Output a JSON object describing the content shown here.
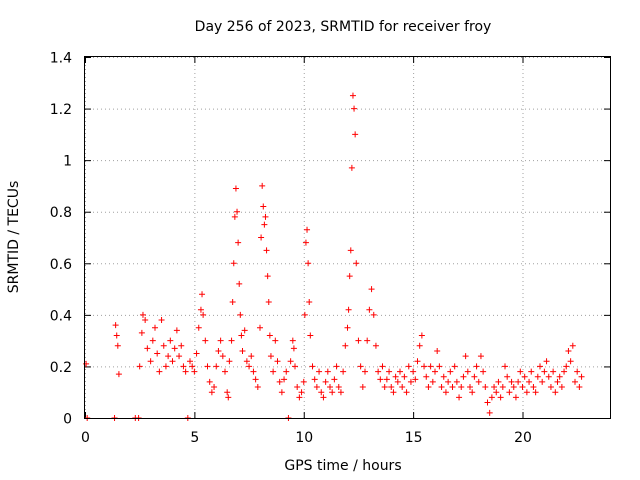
{
  "chart_data": {
    "type": "scatter",
    "title": "Day 256 of 2023, SRMTID for receiver froy",
    "xlabel": "GPS time / hours",
    "ylabel": "SRMTID / TECUs",
    "xlim": [
      0,
      24
    ],
    "ylim": [
      0,
      1.4
    ],
    "xticks": [
      0,
      5,
      10,
      15,
      20
    ],
    "xtick_labels": [
      "0",
      "5",
      "10",
      "15",
      "20"
    ],
    "yticks": [
      0,
      0.2,
      0.4,
      0.6,
      0.8,
      1.0,
      1.2,
      1.4
    ],
    "ytick_labels": [
      "0",
      "0.2",
      "0.4",
      "0.6",
      "0.8",
      "1",
      "1.2",
      "1.4"
    ],
    "grid": true,
    "marker": "+",
    "color": "#ff0000",
    "series": [
      {
        "name": "SRMTID",
        "points": [
          [
            0.05,
            0.21
          ],
          [
            0.1,
            0.0
          ],
          [
            1.35,
            0.0
          ],
          [
            1.4,
            0.36
          ],
          [
            1.45,
            0.32
          ],
          [
            1.5,
            0.28
          ],
          [
            1.55,
            0.17
          ],
          [
            2.3,
            0.0
          ],
          [
            2.45,
            0.0
          ],
          [
            2.5,
            0.2
          ],
          [
            2.6,
            0.33
          ],
          [
            2.65,
            0.4
          ],
          [
            2.75,
            0.38
          ],
          [
            2.85,
            0.27
          ],
          [
            3.0,
            0.22
          ],
          [
            3.1,
            0.3
          ],
          [
            3.2,
            0.35
          ],
          [
            3.3,
            0.25
          ],
          [
            3.4,
            0.18
          ],
          [
            3.5,
            0.38
          ],
          [
            3.6,
            0.28
          ],
          [
            3.7,
            0.2
          ],
          [
            3.8,
            0.24
          ],
          [
            3.9,
            0.3
          ],
          [
            4.0,
            0.22
          ],
          [
            4.1,
            0.27
          ],
          [
            4.2,
            0.34
          ],
          [
            4.3,
            0.24
          ],
          [
            4.4,
            0.28
          ],
          [
            4.5,
            0.2
          ],
          [
            4.6,
            0.18
          ],
          [
            4.7,
            0.0
          ],
          [
            4.8,
            0.22
          ],
          [
            4.9,
            0.2
          ],
          [
            5.0,
            0.18
          ],
          [
            5.1,
            0.25
          ],
          [
            5.2,
            0.35
          ],
          [
            5.3,
            0.42
          ],
          [
            5.35,
            0.48
          ],
          [
            5.4,
            0.4
          ],
          [
            5.5,
            0.3
          ],
          [
            5.6,
            0.2
          ],
          [
            5.7,
            0.14
          ],
          [
            5.8,
            0.1
          ],
          [
            5.9,
            0.12
          ],
          [
            6.0,
            0.2
          ],
          [
            6.1,
            0.26
          ],
          [
            6.2,
            0.3
          ],
          [
            6.3,
            0.24
          ],
          [
            6.4,
            0.18
          ],
          [
            6.5,
            0.1
          ],
          [
            6.55,
            0.08
          ],
          [
            6.6,
            0.22
          ],
          [
            6.7,
            0.3
          ],
          [
            6.75,
            0.45
          ],
          [
            6.8,
            0.6
          ],
          [
            6.85,
            0.78
          ],
          [
            6.9,
            0.89
          ],
          [
            6.95,
            0.8
          ],
          [
            7.0,
            0.68
          ],
          [
            7.05,
            0.52
          ],
          [
            7.1,
            0.4
          ],
          [
            7.15,
            0.32
          ],
          [
            7.2,
            0.26
          ],
          [
            7.3,
            0.34
          ],
          [
            7.4,
            0.22
          ],
          [
            7.5,
            0.2
          ],
          [
            7.6,
            0.24
          ],
          [
            7.7,
            0.18
          ],
          [
            7.8,
            0.15
          ],
          [
            7.9,
            0.12
          ],
          [
            8.0,
            0.35
          ],
          [
            8.05,
            0.7
          ],
          [
            8.1,
            0.9
          ],
          [
            8.15,
            0.82
          ],
          [
            8.2,
            0.75
          ],
          [
            8.25,
            0.78
          ],
          [
            8.3,
            0.65
          ],
          [
            8.35,
            0.55
          ],
          [
            8.4,
            0.45
          ],
          [
            8.45,
            0.32
          ],
          [
            8.5,
            0.24
          ],
          [
            8.6,
            0.18
          ],
          [
            8.7,
            0.3
          ],
          [
            8.8,
            0.22
          ],
          [
            8.9,
            0.14
          ],
          [
            9.0,
            0.1
          ],
          [
            9.1,
            0.15
          ],
          [
            9.2,
            0.18
          ],
          [
            9.3,
            0.0
          ],
          [
            9.4,
            0.22
          ],
          [
            9.5,
            0.3
          ],
          [
            9.55,
            0.27
          ],
          [
            9.6,
            0.2
          ],
          [
            9.7,
            0.12
          ],
          [
            9.8,
            0.08
          ],
          [
            9.9,
            0.1
          ],
          [
            10.0,
            0.14
          ],
          [
            10.05,
            0.4
          ],
          [
            10.1,
            0.68
          ],
          [
            10.15,
            0.73
          ],
          [
            10.2,
            0.6
          ],
          [
            10.25,
            0.45
          ],
          [
            10.3,
            0.32
          ],
          [
            10.4,
            0.2
          ],
          [
            10.5,
            0.15
          ],
          [
            10.6,
            0.12
          ],
          [
            10.7,
            0.18
          ],
          [
            10.8,
            0.1
          ],
          [
            10.9,
            0.08
          ],
          [
            11.0,
            0.14
          ],
          [
            11.1,
            0.18
          ],
          [
            11.2,
            0.12
          ],
          [
            11.3,
            0.1
          ],
          [
            11.4,
            0.15
          ],
          [
            11.5,
            0.2
          ],
          [
            11.6,
            0.12
          ],
          [
            11.7,
            0.1
          ],
          [
            11.8,
            0.18
          ],
          [
            11.9,
            0.28
          ],
          [
            12.0,
            0.35
          ],
          [
            12.05,
            0.42
          ],
          [
            12.1,
            0.55
          ],
          [
            12.15,
            0.65
          ],
          [
            12.2,
            0.97
          ],
          [
            12.25,
            1.25
          ],
          [
            12.3,
            1.2
          ],
          [
            12.35,
            1.1
          ],
          [
            12.4,
            0.6
          ],
          [
            12.5,
            0.3
          ],
          [
            12.6,
            0.2
          ],
          [
            12.7,
            0.12
          ],
          [
            12.8,
            0.18
          ],
          [
            12.9,
            0.3
          ],
          [
            13.0,
            0.42
          ],
          [
            13.1,
            0.5
          ],
          [
            13.2,
            0.4
          ],
          [
            13.3,
            0.28
          ],
          [
            13.4,
            0.18
          ],
          [
            13.5,
            0.15
          ],
          [
            13.6,
            0.2
          ],
          [
            13.7,
            0.12
          ],
          [
            13.8,
            0.15
          ],
          [
            13.9,
            0.18
          ],
          [
            14.0,
            0.12
          ],
          [
            14.1,
            0.1
          ],
          [
            14.2,
            0.16
          ],
          [
            14.3,
            0.14
          ],
          [
            14.4,
            0.18
          ],
          [
            14.5,
            0.12
          ],
          [
            14.6,
            0.16
          ],
          [
            14.7,
            0.1
          ],
          [
            14.8,
            0.2
          ],
          [
            14.9,
            0.14
          ],
          [
            15.0,
            0.18
          ],
          [
            15.1,
            0.15
          ],
          [
            15.2,
            0.22
          ],
          [
            15.3,
            0.28
          ],
          [
            15.4,
            0.32
          ],
          [
            15.5,
            0.2
          ],
          [
            15.6,
            0.16
          ],
          [
            15.7,
            0.12
          ],
          [
            15.8,
            0.2
          ],
          [
            15.9,
            0.14
          ],
          [
            16.0,
            0.18
          ],
          [
            16.1,
            0.26
          ],
          [
            16.2,
            0.2
          ],
          [
            16.3,
            0.12
          ],
          [
            16.4,
            0.16
          ],
          [
            16.5,
            0.1
          ],
          [
            16.6,
            0.14
          ],
          [
            16.7,
            0.18
          ],
          [
            16.8,
            0.12
          ],
          [
            16.9,
            0.2
          ],
          [
            17.0,
            0.14
          ],
          [
            17.1,
            0.08
          ],
          [
            17.2,
            0.12
          ],
          [
            17.3,
            0.16
          ],
          [
            17.4,
            0.24
          ],
          [
            17.5,
            0.18
          ],
          [
            17.6,
            0.12
          ],
          [
            17.7,
            0.1
          ],
          [
            17.8,
            0.16
          ],
          [
            17.9,
            0.2
          ],
          [
            18.0,
            0.14
          ],
          [
            18.1,
            0.24
          ],
          [
            18.2,
            0.18
          ],
          [
            18.3,
            0.12
          ],
          [
            18.4,
            0.06
          ],
          [
            18.5,
            0.02
          ],
          [
            18.6,
            0.08
          ],
          [
            18.7,
            0.12
          ],
          [
            18.8,
            0.1
          ],
          [
            18.9,
            0.14
          ],
          [
            19.0,
            0.08
          ],
          [
            19.1,
            0.12
          ],
          [
            19.2,
            0.2
          ],
          [
            19.3,
            0.16
          ],
          [
            19.4,
            0.1
          ],
          [
            19.5,
            0.14
          ],
          [
            19.6,
            0.12
          ],
          [
            19.7,
            0.08
          ],
          [
            19.8,
            0.14
          ],
          [
            19.9,
            0.18
          ],
          [
            20.0,
            0.12
          ],
          [
            20.1,
            0.16
          ],
          [
            20.2,
            0.1
          ],
          [
            20.3,
            0.14
          ],
          [
            20.4,
            0.18
          ],
          [
            20.5,
            0.12
          ],
          [
            20.6,
            0.1
          ],
          [
            20.7,
            0.16
          ],
          [
            20.8,
            0.2
          ],
          [
            20.9,
            0.14
          ],
          [
            21.0,
            0.18
          ],
          [
            21.1,
            0.22
          ],
          [
            21.2,
            0.16
          ],
          [
            21.3,
            0.12
          ],
          [
            21.4,
            0.18
          ],
          [
            21.5,
            0.1
          ],
          [
            21.6,
            0.14
          ],
          [
            21.7,
            0.16
          ],
          [
            21.8,
            0.12
          ],
          [
            21.9,
            0.18
          ],
          [
            22.0,
            0.2
          ],
          [
            22.1,
            0.26
          ],
          [
            22.2,
            0.22
          ],
          [
            22.3,
            0.28
          ],
          [
            22.4,
            0.14
          ],
          [
            22.5,
            0.18
          ],
          [
            22.6,
            0.12
          ],
          [
            22.7,
            0.16
          ]
        ]
      }
    ]
  }
}
